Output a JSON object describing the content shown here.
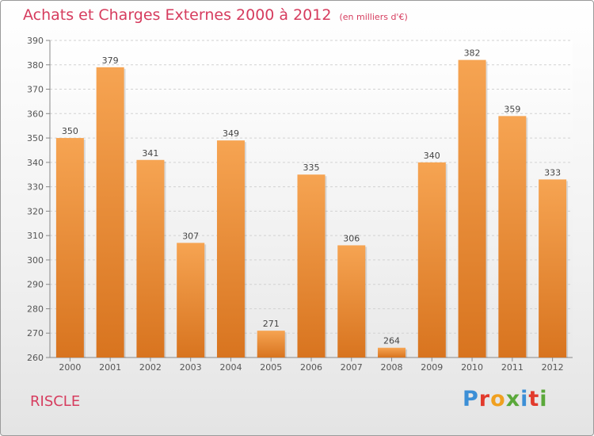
{
  "header": {
    "title": "Achats et Charges Externes 2000 à 2012",
    "unit": "(en milliers d'€)"
  },
  "location": "RISCLE",
  "brand": {
    "letters": [
      "P",
      "r",
      "o",
      "x",
      "i",
      "t",
      "i"
    ],
    "colors": [
      "#3c8fd6",
      "#e23a2c",
      "#f0a020",
      "#5aa83a",
      "#3c8fd6",
      "#e23a2c",
      "#5aa83a"
    ]
  },
  "colors": {
    "bar_top": "#f6a452",
    "bar_bottom": "#d8741f",
    "accent": "#d63c5e"
  },
  "chart_data": {
    "type": "bar",
    "categories": [
      "2000",
      "2001",
      "2002",
      "2003",
      "2004",
      "2005",
      "2006",
      "2007",
      "2008",
      "2009",
      "2010",
      "2011",
      "2012"
    ],
    "values": [
      350,
      379,
      341,
      307,
      349,
      271,
      335,
      306,
      264,
      340,
      382,
      359,
      333
    ],
    "ylim": [
      260,
      390
    ],
    "yticks": [
      260,
      270,
      280,
      290,
      300,
      310,
      320,
      330,
      340,
      350,
      360,
      370,
      380,
      390
    ],
    "grid": true,
    "legend": "none"
  }
}
